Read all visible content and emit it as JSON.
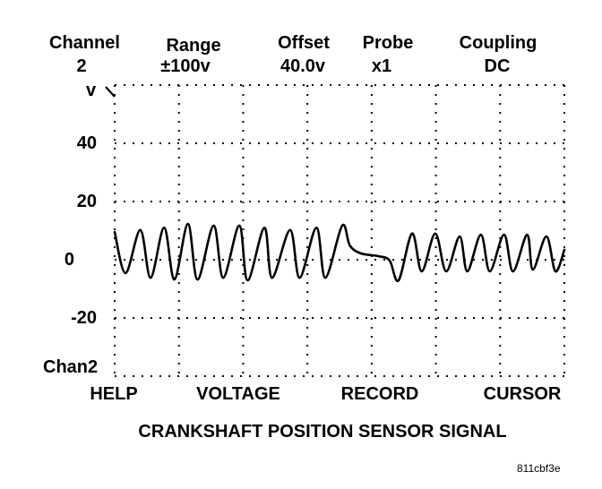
{
  "header": {
    "channel": {
      "label": "Channel",
      "value": "2"
    },
    "range": {
      "label": "Range",
      "value": "±100v"
    },
    "offset": {
      "label": "Offset",
      "value": "40.0v"
    },
    "probe": {
      "label": "Probe",
      "value": "x1"
    },
    "coupling": {
      "label": "Coupling",
      "value": "DC"
    }
  },
  "softkeys": [
    "HELP",
    "VOLTAGE",
    "RECORD",
    "CURSOR"
  ],
  "caption": "CRANKSHAFT POSITION SENSOR SIGNAL",
  "figure_code": "811cbf3e",
  "chart_data": {
    "type": "line",
    "title": "",
    "xlabel": "",
    "ylabel": "v",
    "channel_label": "Chan2",
    "ylim": [
      -40,
      60
    ],
    "yticks": [
      40,
      20,
      0,
      -20
    ],
    "ytick_labels": [
      "40",
      "20",
      "0",
      "-20"
    ],
    "xlim": [
      0,
      7
    ],
    "x_divisions": 7,
    "grid": true,
    "grid_style": "dotted",
    "line_color": "#000000",
    "series": [
      {
        "x": [
          0,
          0.17,
          0.4,
          0.56,
          0.77,
          0.93,
          1.14,
          1.29,
          1.54,
          1.69,
          1.94,
          2.07,
          2.33,
          2.45,
          2.73,
          2.88,
          3.14,
          3.28,
          3.54,
          3.66,
          3.83,
          4.11,
          4.28,
          4.42,
          4.63,
          4.78,
          4.99,
          5.16,
          5.37,
          5.49,
          5.7,
          5.84,
          6.06,
          6.2,
          6.42,
          6.51,
          6.72,
          6.86,
          7.0
        ],
        "y": [
          9.5,
          -4.6,
          10.2,
          -6.2,
          11,
          -6.8,
          12.3,
          -6.8,
          11.7,
          -6.2,
          11.7,
          -7.1,
          11,
          -6.2,
          10.2,
          -6.2,
          11,
          -6.2,
          11.7,
          4.9,
          2.2,
          1.2,
          -0.3,
          -7.1,
          9,
          -4,
          9,
          -4,
          8,
          -4,
          8.6,
          -4,
          8.6,
          -4,
          8.6,
          -3.4,
          8,
          -4,
          3.4
        ]
      }
    ]
  }
}
